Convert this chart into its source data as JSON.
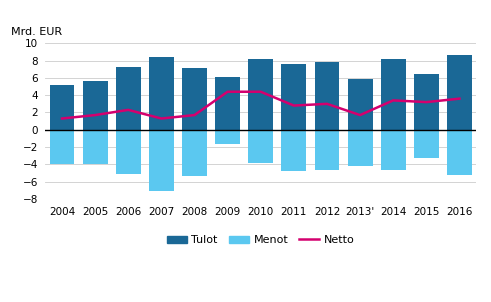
{
  "years": [
    "2004",
    "2005",
    "2006",
    "2007",
    "2008",
    "2009",
    "2010",
    "2011",
    "2012",
    "2013'",
    "2014",
    "2015",
    "2016"
  ],
  "tulot": [
    5.2,
    5.7,
    7.3,
    8.4,
    7.2,
    6.1,
    8.2,
    7.6,
    7.9,
    5.9,
    8.2,
    6.5,
    8.7
  ],
  "menot": [
    -4.0,
    -4.0,
    -5.1,
    -7.1,
    -5.3,
    -1.7,
    -3.8,
    -4.8,
    -4.7,
    -4.2,
    -4.7,
    -3.3,
    -5.2
  ],
  "netto": [
    1.3,
    1.7,
    2.3,
    1.3,
    1.7,
    4.4,
    4.4,
    2.8,
    3.0,
    1.7,
    3.4,
    3.2,
    3.6
  ],
  "tulot_color": "#1a6896",
  "menot_color": "#5bc8f0",
  "netto_color": "#d4006e",
  "ylabel": "Mrd. EUR",
  "ylim": [
    -8,
    10
  ],
  "yticks": [
    -8,
    -6,
    -4,
    -2,
    0,
    2,
    4,
    6,
    8,
    10
  ],
  "legend_labels": [
    "Tulot",
    "Menot",
    "Netto"
  ],
  "background_color": "#ffffff",
  "grid_color": "#cccccc"
}
